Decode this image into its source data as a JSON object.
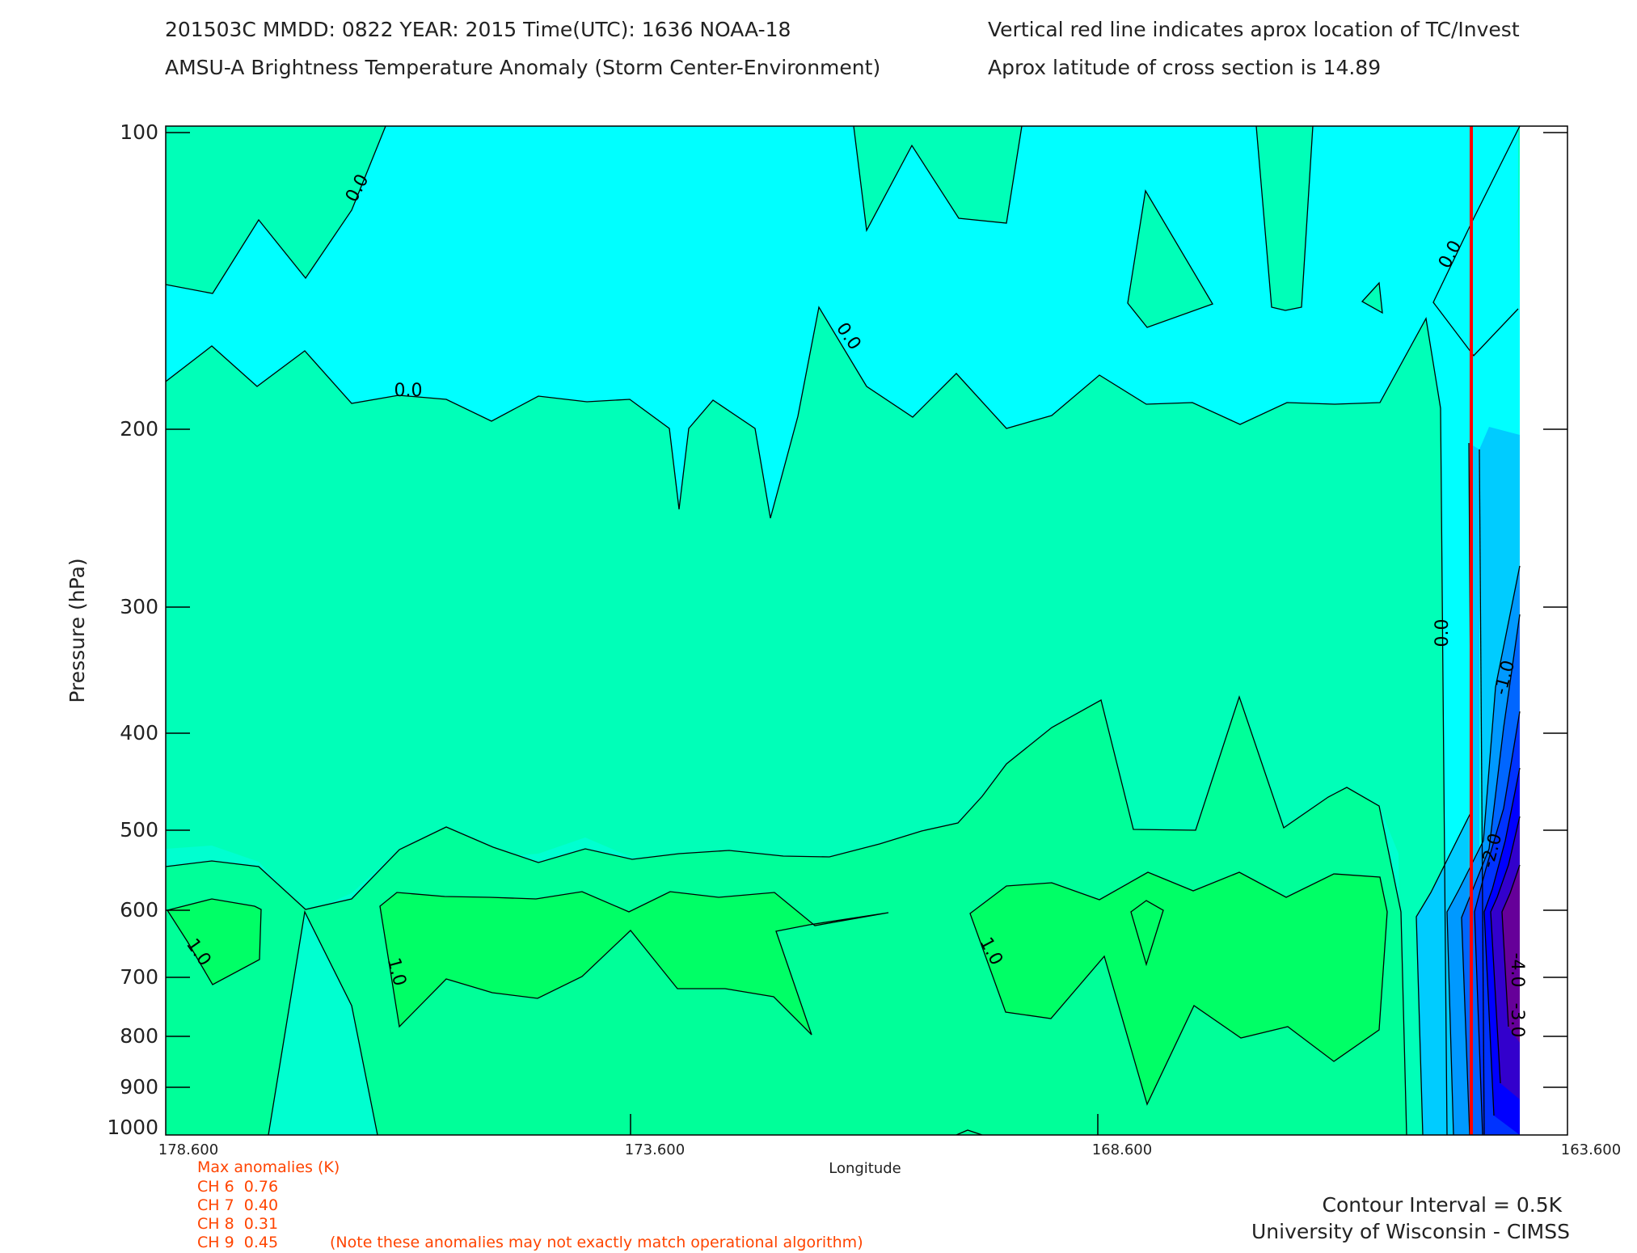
{
  "header": {
    "line1_left": "201503C  MMDD: 0822 YEAR: 2015 Time(UTC): 1636 NOAA-18",
    "line2_left": "AMSU-A Brightness Temperature Anomaly (Storm Center-Environment)",
    "line1_right": "Vertical red line indicates aprox location of TC/Invest",
    "line2_right": "Aprox latitude of cross section is 14.89"
  },
  "colors": {
    "cyan": "#00ffff",
    "green_0_05": "#00ffb8",
    "green_05_1": "#00ff99",
    "green_1_15": "#00ff66",
    "teal": "#00ffd0",
    "blue1": "#00ccff",
    "blue2": "#0099ff",
    "blue3": "#0066ff",
    "blue4": "#0033ff",
    "indigo": "#3300cc",
    "purple": "#660099",
    "red_line": "#ff0000",
    "annotation": "#ff4400"
  },
  "chart_data": {
    "type": "contour",
    "title": "AMSU-A Brightness Temperature Anomaly (Storm Center-Environment)",
    "xlabel": "Longitude",
    "ylabel": "Pressure (hPa)",
    "xlim": [
      178.6,
      163.6
    ],
    "ylim": [
      1000,
      100
    ],
    "yscale": "log",
    "xticks": [
      "178.600",
      "173.600",
      "168.600",
      "163.600"
    ],
    "yticks": [
      "100",
      "200",
      "300",
      "400",
      "500",
      "600",
      "700",
      "800",
      "900",
      "1000"
    ],
    "contour_interval_K": 0.5,
    "storm_longitude": 164.9,
    "contour_labels": [
      "0.0",
      "0.0",
      "0.0",
      "0.0",
      "0.0",
      "-1.0",
      "1.0",
      "1.0",
      "1.0",
      "-2.0",
      "-4.0",
      "-3.0"
    ]
  },
  "anomalies": {
    "title": "Max anomalies (K)",
    "rows": [
      "CH 6  0.76",
      "CH 7  0.40",
      "CH 8  0.31",
      "CH 9  0.45"
    ],
    "note": "(Note these anomalies may not exactly match operational algorithm)"
  },
  "footer": {
    "contour_interval": "Contour Interval = 0.5K",
    "credit": "University of Wisconsin - CIMSS"
  }
}
